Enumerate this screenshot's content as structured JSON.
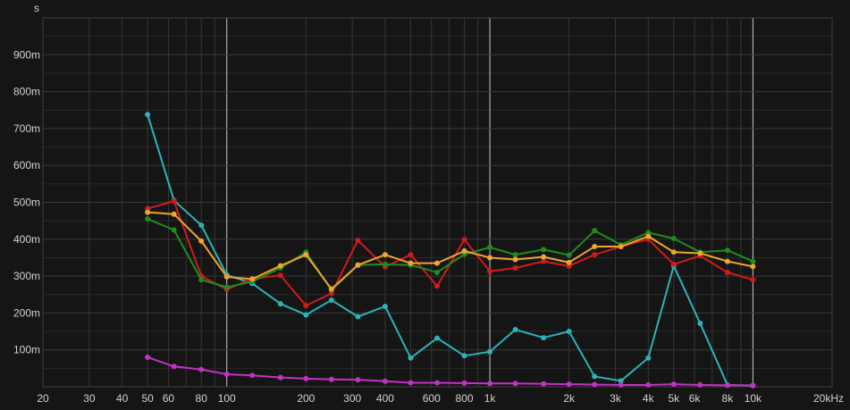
{
  "chart_data": {
    "type": "line",
    "title": "",
    "xlabel": "",
    "ylabel": "s",
    "x_scale": "log",
    "xlim": [
      20,
      20000
    ],
    "ylim": [
      0,
      1.0
    ],
    "grid": true,
    "legend": "none",
    "background": "#151515",
    "x_ticks": [
      {
        "value": 20,
        "label": "20"
      },
      {
        "value": 30,
        "label": "30"
      },
      {
        "value": 40,
        "label": "40"
      },
      {
        "value": 50,
        "label": "50"
      },
      {
        "value": 60,
        "label": "60"
      },
      {
        "value": 80,
        "label": "80"
      },
      {
        "value": 100,
        "label": "100"
      },
      {
        "value": 200,
        "label": "200"
      },
      {
        "value": 300,
        "label": "300"
      },
      {
        "value": 400,
        "label": "400"
      },
      {
        "value": 600,
        "label": "600"
      },
      {
        "value": 800,
        "label": "800"
      },
      {
        "value": 1000,
        "label": "1k"
      },
      {
        "value": 2000,
        "label": "2k"
      },
      {
        "value": 3000,
        "label": "3k"
      },
      {
        "value": 4000,
        "label": "4k"
      },
      {
        "value": 5000,
        "label": "5k"
      },
      {
        "value": 6000,
        "label": "6k"
      },
      {
        "value": 8000,
        "label": "8k"
      },
      {
        "value": 10000,
        "label": "10k"
      },
      {
        "value": 20000,
        "label": "20kHz"
      }
    ],
    "y_ticks": [
      {
        "value": 0.1,
        "label": "100m"
      },
      {
        "value": 0.2,
        "label": "200m"
      },
      {
        "value": 0.3,
        "label": "300m"
      },
      {
        "value": 0.4,
        "label": "400m"
      },
      {
        "value": 0.5,
        "label": "500m"
      },
      {
        "value": 0.6,
        "label": "600m"
      },
      {
        "value": 0.7,
        "label": "700m"
      },
      {
        "value": 0.8,
        "label": "800m"
      },
      {
        "value": 0.9,
        "label": "900m"
      }
    ],
    "x": [
      50,
      63,
      80,
      100,
      125,
      160,
      200,
      250,
      315,
      400,
      500,
      630,
      800,
      1000,
      1250,
      1600,
      2000,
      2500,
      3150,
      4000,
      5000,
      6300,
      8000,
      10000
    ],
    "series": [
      {
        "color": "#2bb3b8",
        "values": [
          0.738,
          0.505,
          0.438,
          0.303,
          0.28,
          0.225,
          0.195,
          0.235,
          0.19,
          0.218,
          0.078,
          0.132,
          0.084,
          0.095,
          0.155,
          0.133,
          0.15,
          0.028,
          0.016,
          0.078,
          0.328,
          0.172,
          0.005,
          0.003
        ]
      },
      {
        "color": "#cf1b1b",
        "values": [
          0.483,
          0.503,
          0.3,
          0.264,
          0.293,
          0.302,
          0.22,
          0.253,
          0.397,
          0.325,
          0.358,
          0.273,
          0.399,
          0.313,
          0.322,
          0.34,
          0.327,
          0.358,
          0.38,
          0.4,
          0.332,
          0.355,
          0.31,
          0.29
        ]
      },
      {
        "color": "#1e8c1e",
        "values": [
          0.455,
          0.425,
          0.29,
          0.27,
          0.285,
          0.322,
          0.365,
          0.262,
          0.33,
          0.332,
          0.33,
          0.31,
          0.359,
          0.378,
          0.358,
          0.372,
          0.357,
          0.423,
          0.385,
          0.418,
          0.402,
          0.365,
          0.37,
          0.34
        ]
      },
      {
        "color": "#f0a52c",
        "values": [
          0.473,
          0.468,
          0.395,
          0.298,
          0.292,
          0.328,
          0.358,
          0.265,
          0.33,
          0.358,
          0.335,
          0.335,
          0.368,
          0.35,
          0.345,
          0.352,
          0.337,
          0.38,
          0.38,
          0.408,
          0.365,
          0.362,
          0.34,
          0.326
        ]
      },
      {
        "color": "#c431c4",
        "values": [
          0.08,
          0.055,
          0.047,
          0.034,
          0.031,
          0.025,
          0.022,
          0.02,
          0.019,
          0.015,
          0.011,
          0.011,
          0.01,
          0.009,
          0.009,
          0.008,
          0.007,
          0.006,
          0.005,
          0.005,
          0.007,
          0.005,
          0.004,
          0.004
        ]
      }
    ]
  }
}
